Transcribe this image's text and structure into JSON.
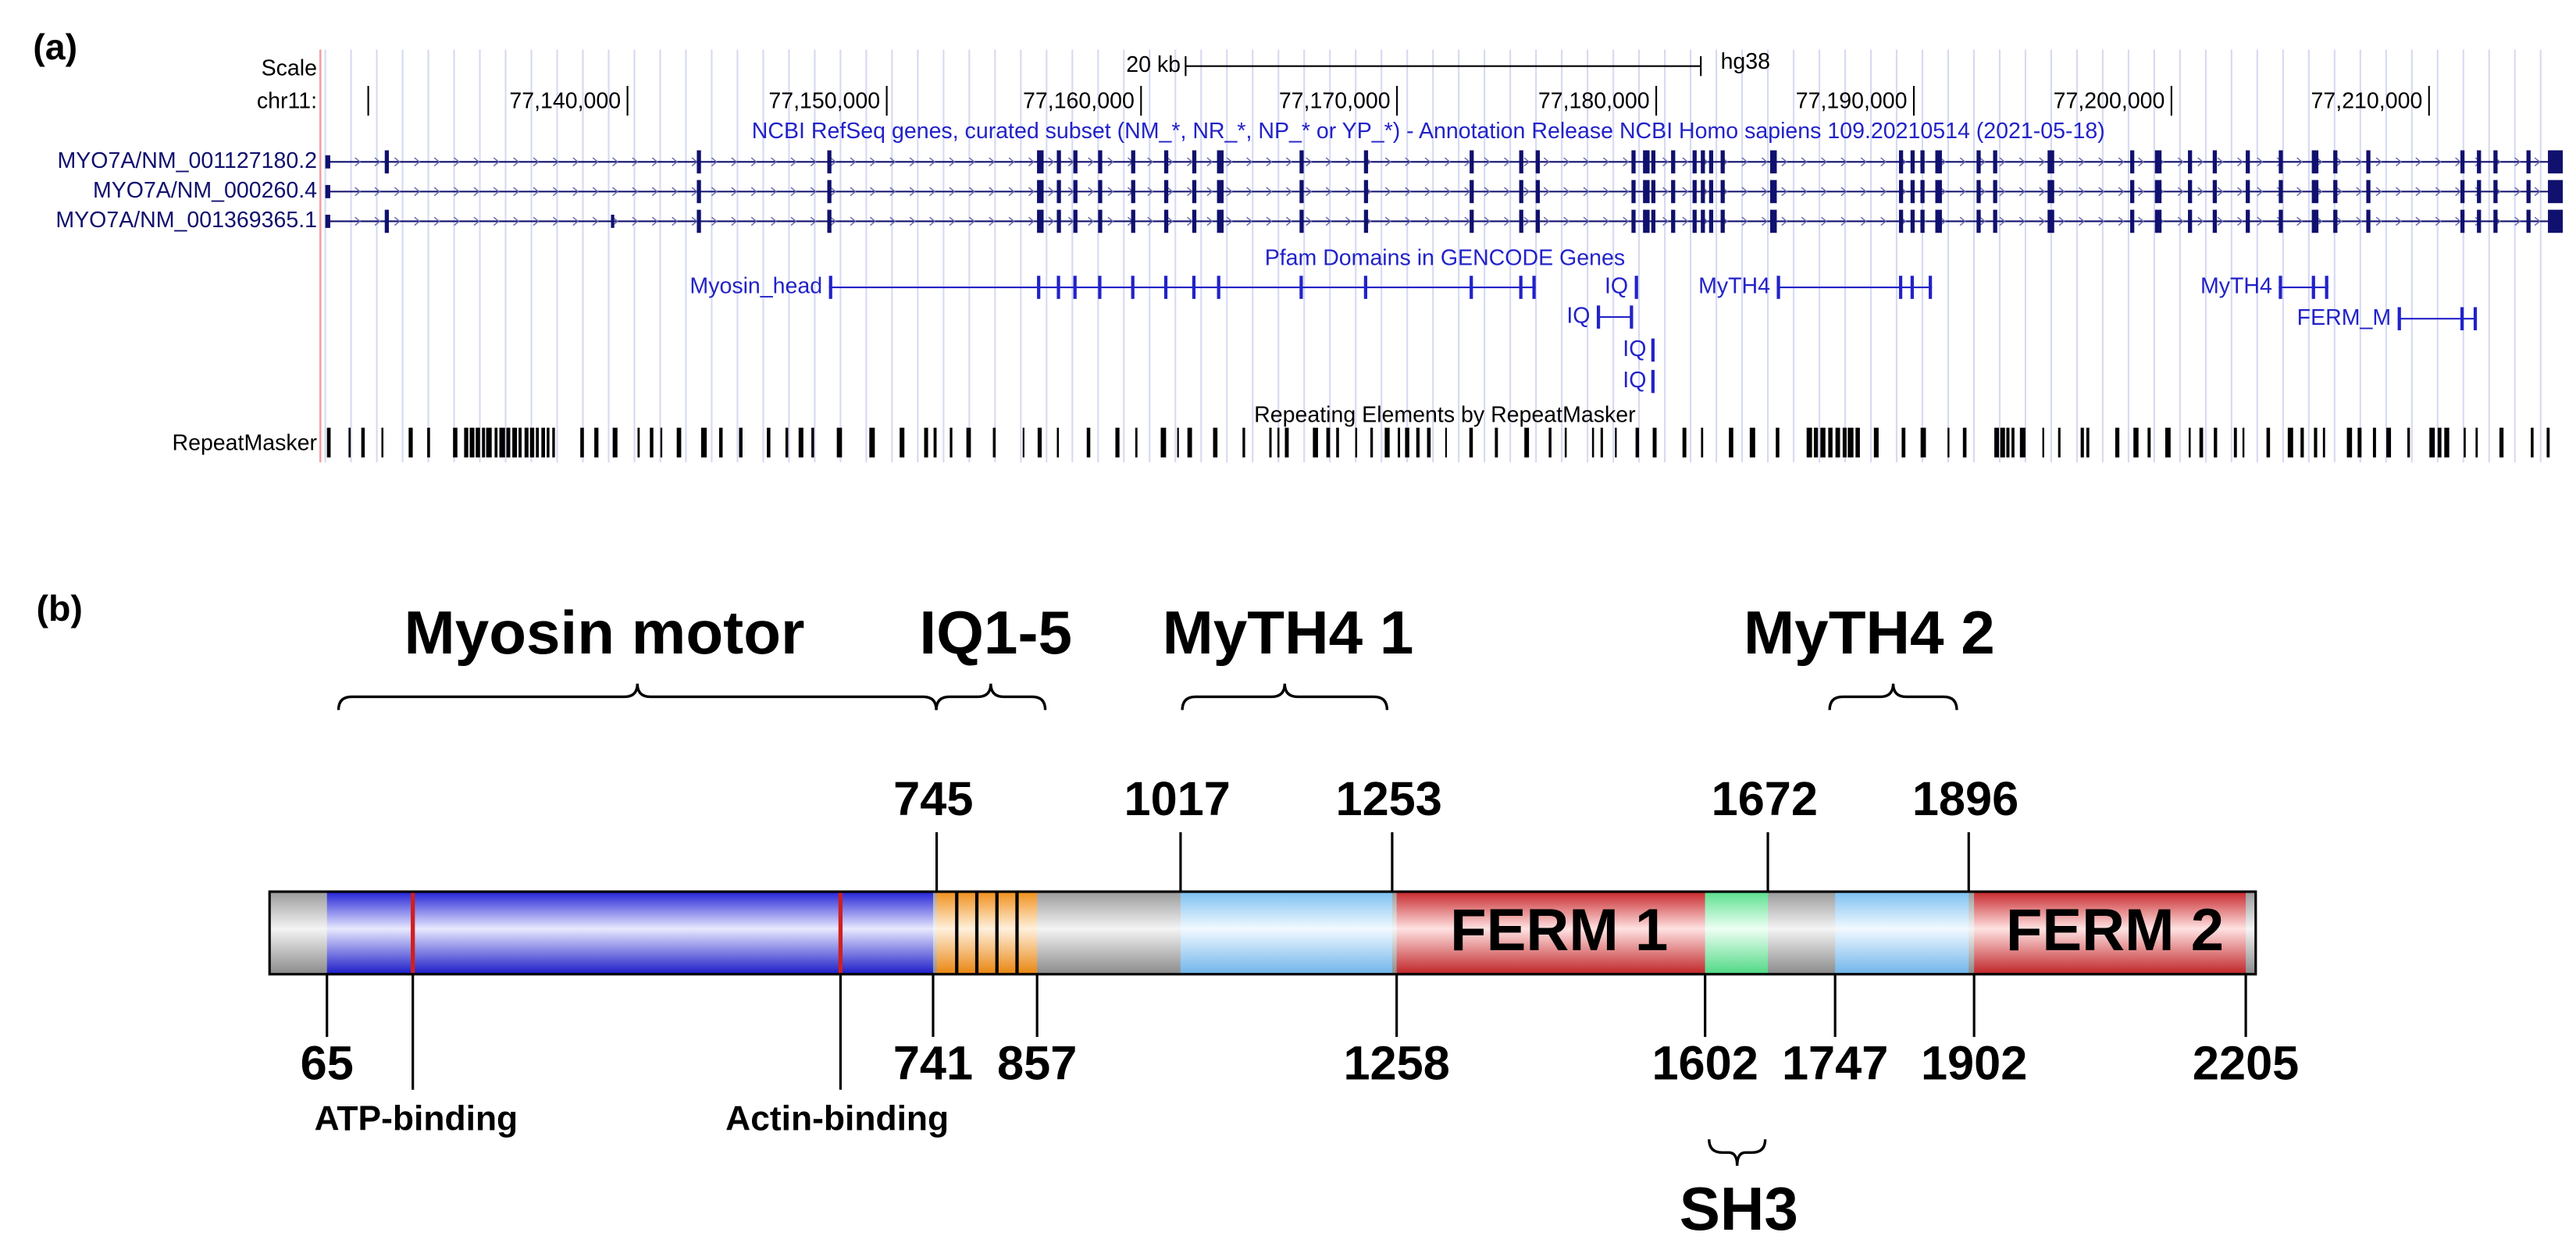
{
  "panel_a": {
    "label": "(a)",
    "scale_label": "Scale",
    "chrom_label": "chr11:",
    "scale_bar": "20 kb",
    "assembly": "hg38",
    "coordinates": [
      "77,140,000",
      "77,150,000",
      "77,160,000",
      "77,170,000",
      "77,180,000",
      "77,190,000",
      "77,200,000",
      "77,210,000"
    ],
    "refseq_track": "NCBI RefSeq genes, curated subset (NM_*, NR_*, NP_* or YP_*) - Annotation Release NCBI Homo sapiens 109.20210514 (2021-05-18)",
    "transcripts": [
      "MYO7A/NM_001127180.2",
      "MYO7A/NM_000260.4",
      "MYO7A/NM_001369365.1"
    ],
    "pfam_track": "Pfam Domains in GENCODE Genes",
    "pfam_domains": [
      "Myosin_head",
      "IQ",
      "IQ",
      "IQ",
      "IQ",
      "MyTH4",
      "MyTH4",
      "FERM_M"
    ],
    "repeat_track": "Repeating Elements by RepeatMasker",
    "repeat_label": "RepeatMasker"
  },
  "panel_b": {
    "label": "(b)",
    "domains": [
      "Myosin motor",
      "IQ1-5",
      "MyTH4 1",
      "MyTH4 2",
      "SH3"
    ],
    "positions_top": [
      745,
      1017,
      1253,
      1672,
      1896
    ],
    "positions_bottom": [
      65,
      741,
      857,
      1258,
      1602,
      1747,
      1902,
      2205
    ],
    "segments": [
      "FERM 1",
      "FERM 2"
    ],
    "sites": [
      "ATP-binding",
      "Actin-binding"
    ]
  }
}
